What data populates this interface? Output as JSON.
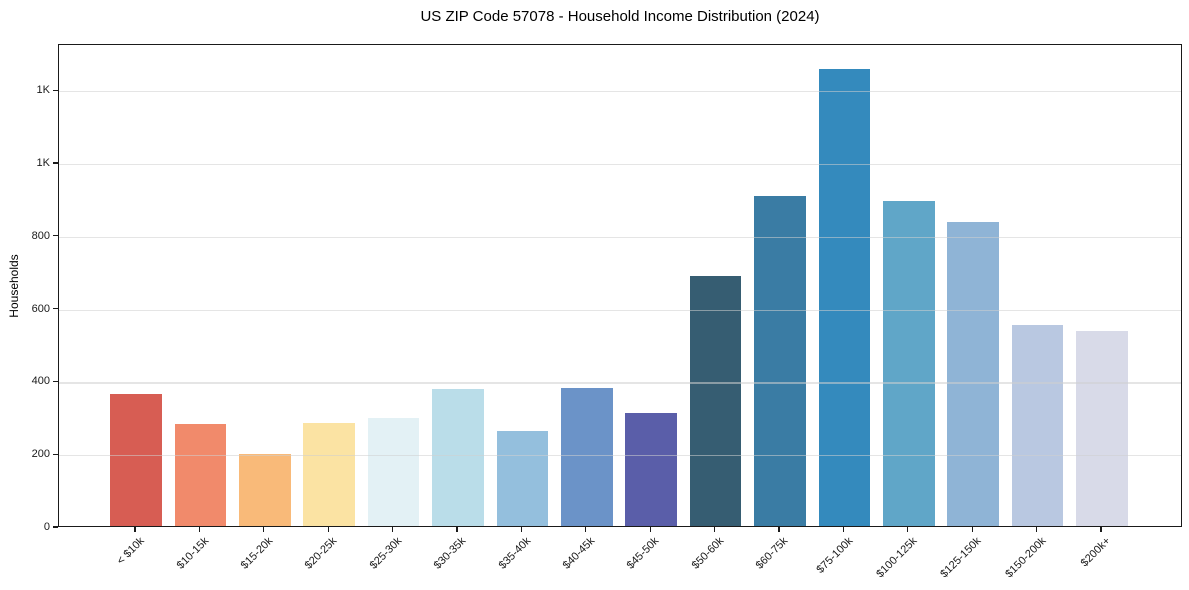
{
  "chart_data": {
    "type": "bar",
    "title": "US ZIP Code 57078 - Household Income Distribution (2024)",
    "ylabel": "Households",
    "xlabel": "",
    "categories": [
      "< $10k",
      "$10-15k",
      "$15-20k",
      "$20-25k",
      "$25-30k",
      "$30-35k",
      "$35-40k",
      "$40-45k",
      "$45-50k",
      "$50-60k",
      "$60-75k",
      "$75-100k",
      "$100-125k",
      "$125-150k",
      "$150-200k",
      "$200k+"
    ],
    "values": [
      362,
      281,
      198,
      283,
      296,
      376,
      262,
      380,
      310,
      688,
      908,
      1256,
      893,
      835,
      551,
      535
    ],
    "bar_colors": [
      "#d75d53",
      "#f18a6b",
      "#f9ba79",
      "#fbe3a3",
      "#e3f1f5",
      "#badde9",
      "#94bfdd",
      "#6b93c8",
      "#5a5ea9",
      "#365d72",
      "#3a7ca4",
      "#348abd",
      "#60a6c8",
      "#8fb4d6",
      "#b9c8e1",
      "#d8dae8"
    ],
    "ylim": [
      0,
      1327
    ],
    "yticks": [
      {
        "value": 0,
        "label": "0"
      },
      {
        "value": 200,
        "label": "200"
      },
      {
        "value": 400,
        "label": "400"
      },
      {
        "value": 600,
        "label": "600"
      },
      {
        "value": 800,
        "label": "800"
      },
      {
        "value": 1000,
        "label": "1K"
      },
      {
        "value": 1200,
        "label": "1K"
      }
    ],
    "grid": "horizontal",
    "legend": "none",
    "colors": {
      "spine": "#1a1a1a",
      "grid": "#e9e9e9",
      "background": "#ffffff",
      "text": "#000000"
    }
  }
}
